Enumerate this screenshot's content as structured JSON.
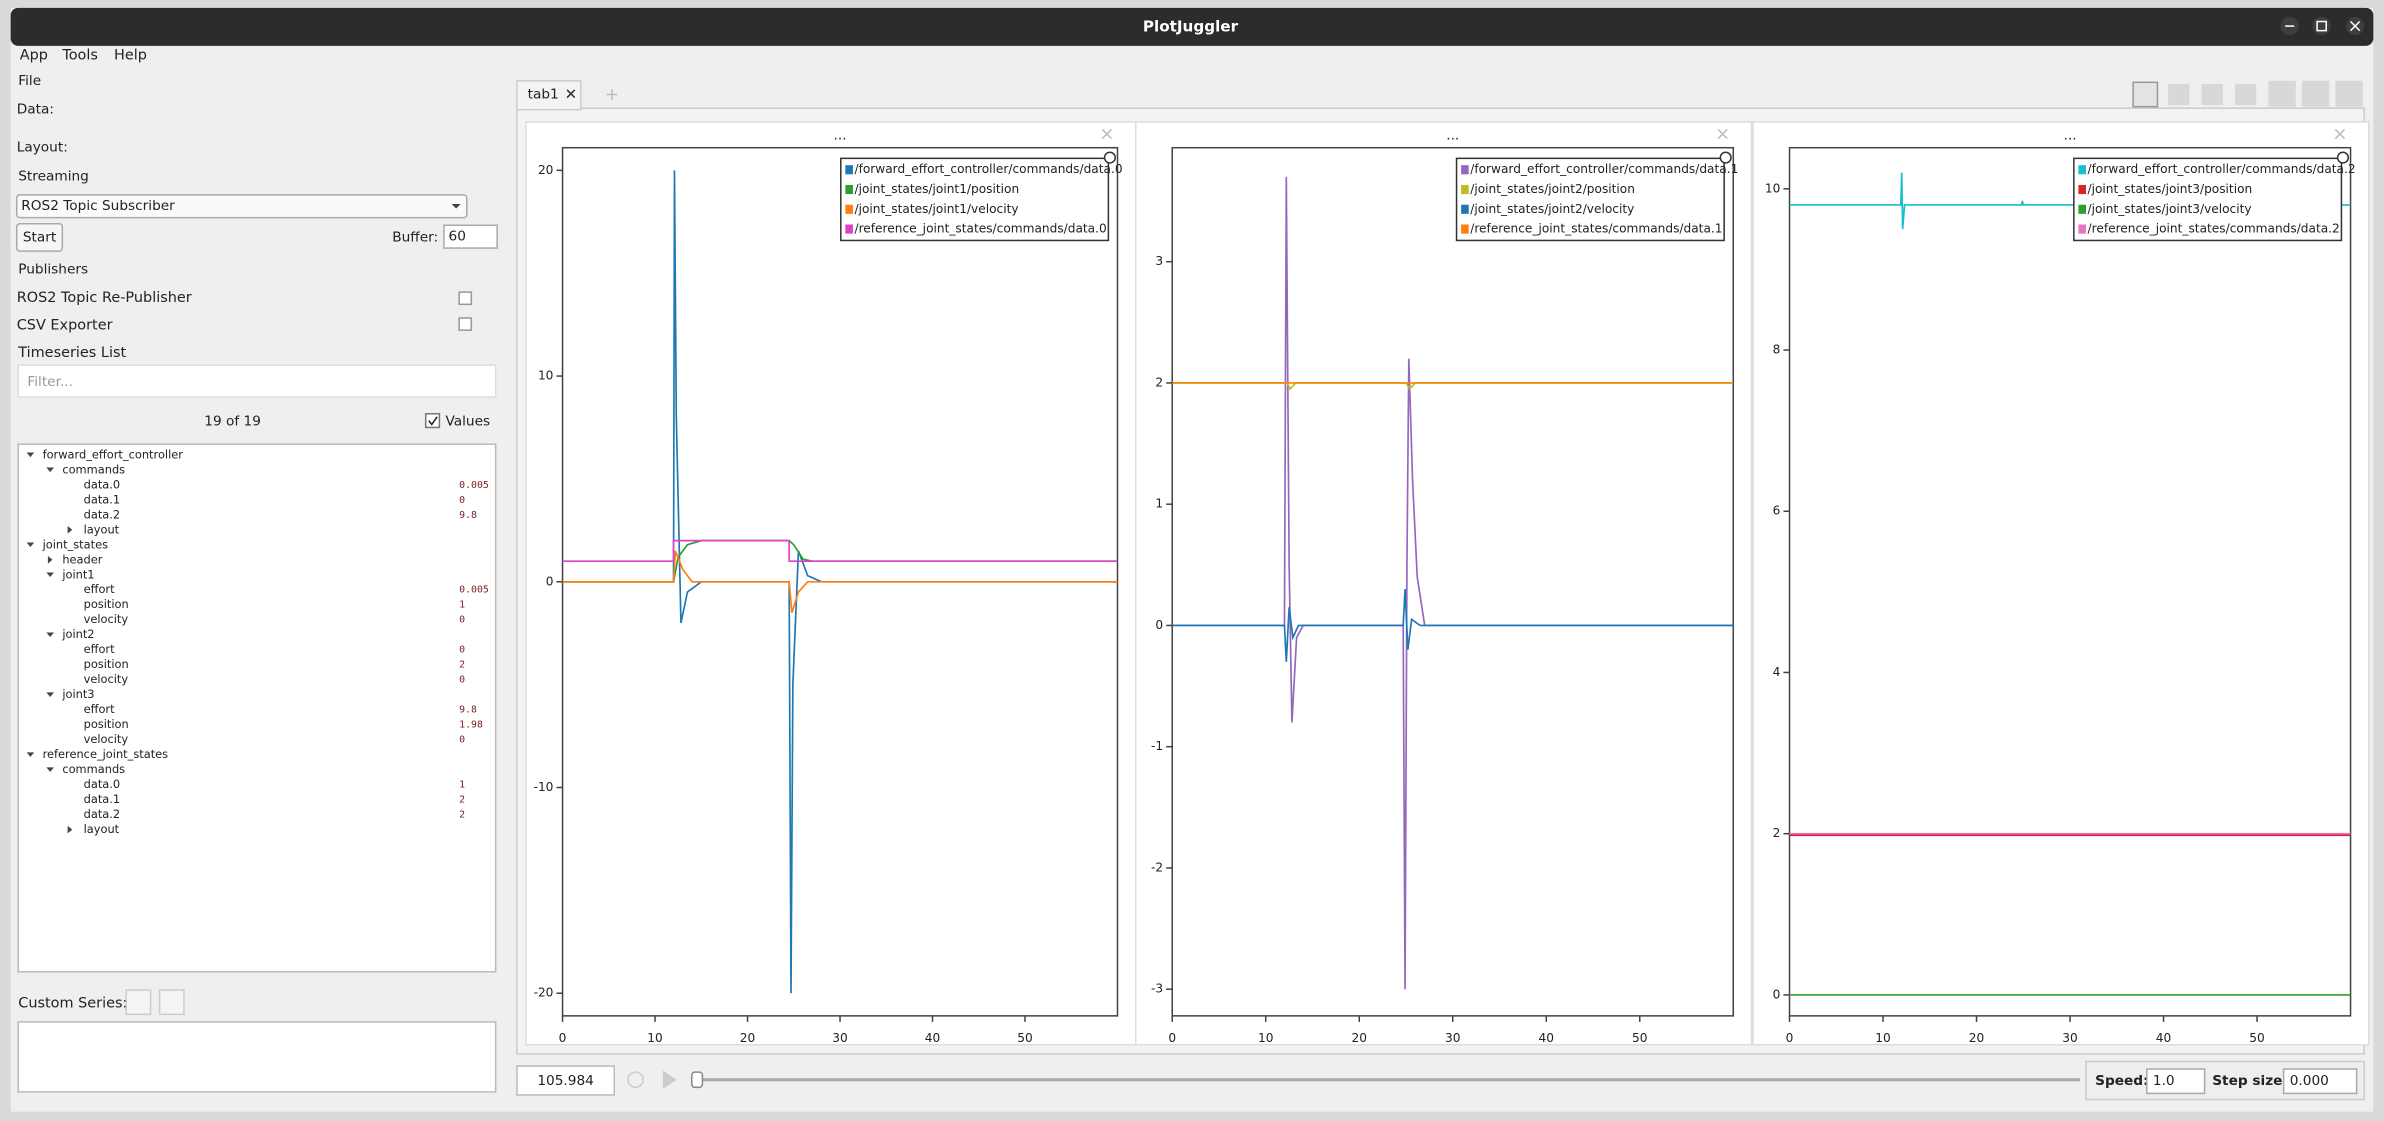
{
  "window": {
    "title": "PlotJuggler",
    "menu": [
      "App",
      "Tools",
      "Help"
    ]
  },
  "left_panel": {
    "file": "File",
    "data": "Data:",
    "layout": "Layout:",
    "streaming": "Streaming",
    "source": "ROS2 Topic Subscriber",
    "start": "Start",
    "buffer_label": "Buffer:",
    "buffer_value": "60",
    "publishers": "Publishers",
    "publisher_items": [
      "ROS2 Topic Re-Publisher",
      "CSV Exporter"
    ],
    "timeseries_list": "Timeseries List",
    "filter_placeholder": "Filter...",
    "count": "19 of 19",
    "values_checkbox": "Values",
    "custom_series": "Custom Series:",
    "tree": [
      {
        "label": "forward_effort_controller",
        "level": 0,
        "arrow": "down"
      },
      {
        "label": "commands",
        "level": 1,
        "arrow": "down"
      },
      {
        "label": "data.0",
        "level": 2,
        "value": "0.005"
      },
      {
        "label": "data.1",
        "level": 2,
        "value": "0"
      },
      {
        "label": "data.2",
        "level": 2,
        "value": "9.8"
      },
      {
        "label": "layout",
        "level": 2,
        "arrow": "right"
      },
      {
        "label": "joint_states",
        "level": 0,
        "arrow": "down"
      },
      {
        "label": "header",
        "level": 1,
        "arrow": "right"
      },
      {
        "label": "joint1",
        "level": 1,
        "arrow": "down"
      },
      {
        "label": "effort",
        "level": 2,
        "value": "0.005"
      },
      {
        "label": "position",
        "level": 2,
        "value": "1"
      },
      {
        "label": "velocity",
        "level": 2,
        "value": "0"
      },
      {
        "label": "joint2",
        "level": 1,
        "arrow": "down"
      },
      {
        "label": "effort",
        "level": 2,
        "value": "0"
      },
      {
        "label": "position",
        "level": 2,
        "value": "2"
      },
      {
        "label": "velocity",
        "level": 2,
        "value": "0"
      },
      {
        "label": "joint3",
        "level": 1,
        "arrow": "down"
      },
      {
        "label": "effort",
        "level": 2,
        "value": "9.8"
      },
      {
        "label": "position",
        "level": 2,
        "value": "1.98"
      },
      {
        "label": "velocity",
        "level": 2,
        "value": "0"
      },
      {
        "label": "reference_joint_states",
        "level": 0,
        "arrow": "down"
      },
      {
        "label": "commands",
        "level": 1,
        "arrow": "down"
      },
      {
        "label": "data.0",
        "level": 2,
        "value": "1"
      },
      {
        "label": "data.1",
        "level": 2,
        "value": "2"
      },
      {
        "label": "data.2",
        "level": 2,
        "value": "2"
      },
      {
        "label": "layout",
        "level": 2,
        "arrow": "right"
      }
    ]
  },
  "tabs": [
    "tab1"
  ],
  "plots": [
    {
      "type": "line",
      "title": "...",
      "xlim": [
        0,
        60
      ],
      "ylim": [
        -21.1,
        21.1
      ],
      "xticks": [
        0,
        10,
        20,
        30,
        40,
        50
      ],
      "yticks": [
        -20,
        -10,
        0,
        10,
        20
      ],
      "series": [
        {
          "name": "/forward_effort_controller/commands/data.0",
          "color": "#1f77b4",
          "x": [
            0,
            12,
            12.1,
            12.3,
            12.8,
            13.5,
            15,
            24.5,
            24.7,
            24.9,
            25.5,
            26.5,
            28,
            60
          ],
          "values": [
            0,
            0,
            20,
            8,
            -2,
            -0.5,
            0,
            0,
            -20,
            -5,
            1.5,
            0.3,
            0,
            0
          ]
        },
        {
          "name": "/joint_states/joint1/position",
          "color": "#2ca02c",
          "x": [
            0,
            12,
            12.5,
            13.5,
            15,
            24.5,
            25,
            26,
            27,
            60
          ],
          "values": [
            0,
            0,
            1.2,
            1.8,
            2,
            2,
            1.8,
            1.1,
            1,
            1
          ]
        },
        {
          "name": "/joint_states/joint1/velocity",
          "color": "#ff7f0e",
          "x": [
            0,
            12,
            12.2,
            13,
            14,
            24.5,
            24.8,
            25.5,
            26.5,
            60
          ],
          "values": [
            0,
            0,
            1.5,
            0.6,
            0,
            0,
            -1.5,
            -0.5,
            0,
            0
          ]
        },
        {
          "name": "/reference_joint_states/commands/data.0",
          "color": "#e040c8",
          "x": [
            0,
            12,
            12,
            24.5,
            24.5,
            60
          ],
          "values": [
            1,
            1,
            2,
            2,
            1,
            1
          ]
        }
      ]
    },
    {
      "type": "line",
      "title": "...",
      "xlim": [
        0,
        60
      ],
      "ylim": [
        -3.22,
        3.94
      ],
      "xticks": [
        0,
        10,
        20,
        30,
        40,
        50
      ],
      "yticks": [
        -3,
        -2,
        -1,
        0,
        1,
        2,
        3
      ],
      "series": [
        {
          "name": "/forward_effort_controller/commands/data.1",
          "color": "#9467bd",
          "x": [
            0,
            12,
            12.2,
            12.5,
            12.8,
            13.3,
            14,
            24.7,
            24.9,
            25.1,
            25.3,
            25.7,
            26.2,
            27,
            60
          ],
          "values": [
            0,
            0,
            3.7,
            0.5,
            -0.8,
            -0.1,
            0,
            0,
            -3,
            0.5,
            2.2,
            1.2,
            0.4,
            0,
            0
          ]
        },
        {
          "name": "/joint_states/joint2/position",
          "color": "#bcbd22",
          "x": [
            0,
            12.3,
            12.6,
            13.2,
            25,
            25.4,
            26,
            60
          ],
          "values": [
            2,
            2,
            1.95,
            2,
            2,
            1.95,
            2,
            2
          ]
        },
        {
          "name": "/joint_states/joint2/velocity",
          "color": "#1f77b4",
          "x": [
            0,
            12,
            12.2,
            12.5,
            12.9,
            13.5,
            17,
            24.7,
            24.9,
            25.2,
            25.6,
            26.5,
            30,
            60
          ],
          "values": [
            0,
            0,
            -0.3,
            0.15,
            -0.1,
            0,
            0,
            0,
            0.3,
            -0.2,
            0.05,
            0,
            0,
            0
          ]
        },
        {
          "name": "/reference_joint_states/commands/data.1",
          "color": "#ff7f0e",
          "x": [
            0,
            60
          ],
          "values": [
            2,
            2
          ]
        }
      ]
    },
    {
      "type": "line",
      "title": "...",
      "xlim": [
        0,
        60
      ],
      "ylim": [
        -0.26,
        10.51
      ],
      "xticks": [
        0,
        10,
        20,
        30,
        40,
        50
      ],
      "yticks": [
        0,
        2,
        4,
        6,
        8,
        10
      ],
      "series": [
        {
          "name": "/forward_effort_controller/commands/data.2",
          "color": "#17becf",
          "x": [
            0,
            11.9,
            12,
            12.1,
            12.3,
            24.8,
            24.9,
            25,
            60
          ],
          "values": [
            9.8,
            9.8,
            10.2,
            9.5,
            9.8,
            9.8,
            9.85,
            9.8,
            9.8
          ]
        },
        {
          "name": "/joint_states/joint3/position",
          "color": "#d62728",
          "x": [
            0,
            60
          ],
          "values": [
            1.98,
            1.98
          ]
        },
        {
          "name": "/joint_states/joint3/velocity",
          "color": "#2ca02c",
          "x": [
            0,
            60
          ],
          "values": [
            0,
            0
          ]
        },
        {
          "name": "/reference_joint_states/commands/data.2",
          "color": "#e377c2",
          "x": [
            0,
            60
          ],
          "values": [
            2,
            2
          ]
        }
      ]
    }
  ],
  "bottom_bar": {
    "time": "105.984",
    "speed_label": "Speed:",
    "speed_value": "1.0",
    "step_label": "Step size:",
    "step_value": "0.000"
  }
}
